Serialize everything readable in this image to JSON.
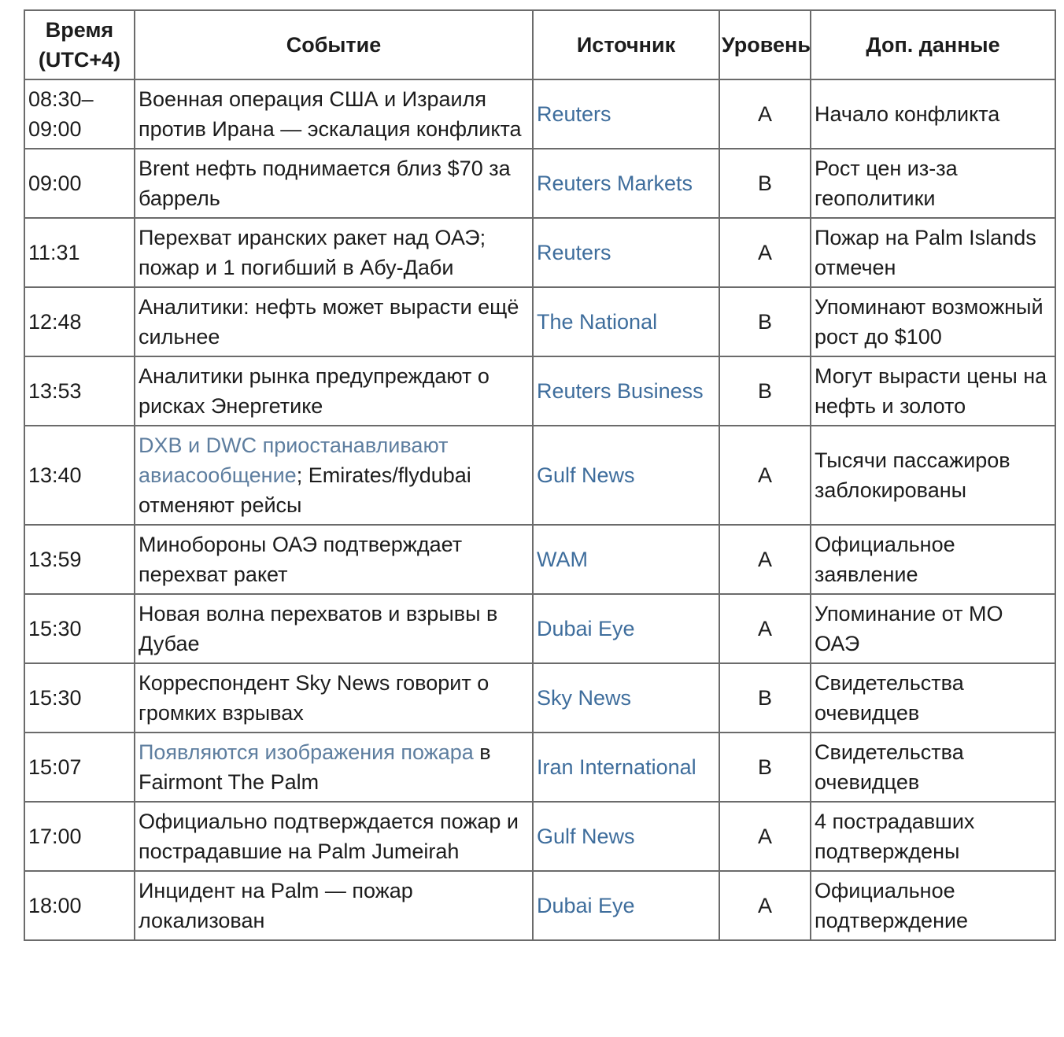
{
  "colors": {
    "text": "#1c1c1c",
    "border": "#6b6b6b",
    "source_link": "#3e6d9c",
    "event_link": "#5e7e9f"
  },
  "table": {
    "columns": [
      {
        "key": "time",
        "label": "Время (UTC+4)"
      },
      {
        "key": "event",
        "label": "Событие"
      },
      {
        "key": "source",
        "label": "Источник"
      },
      {
        "key": "level",
        "label": "Уровень"
      },
      {
        "key": "extra",
        "label": "Доп. данные"
      }
    ],
    "rows": [
      {
        "time": "08:30–09:00",
        "event": [
          {
            "text": "Военная операция США и Израиля против Ирана — эскалация конфликта",
            "link": false
          }
        ],
        "source": "Reuters",
        "level": "A",
        "extra": "Начало конфликта"
      },
      {
        "time": "09:00",
        "event": [
          {
            "text": "Brent нефть поднимается близ $70 за баррель",
            "link": false
          }
        ],
        "source": "Reuters Markets",
        "level": "B",
        "extra": "Рост цен из-за геополитики"
      },
      {
        "time": "11:31",
        "event": [
          {
            "text": "Перехват иранских ракет над ОАЭ; пожар и 1 погибший в Абу-Даби",
            "link": false
          }
        ],
        "source": "Reuters",
        "level": "A",
        "extra": "Пожар на Palm Islands отмечен"
      },
      {
        "time": "12:48",
        "event": [
          {
            "text": "Аналитики: нефть может вырасти ещё сильнее",
            "link": false
          }
        ],
        "source": "The National",
        "level": "B",
        "extra": "Упоминают возможный рост до $100"
      },
      {
        "time": "13:53",
        "event": [
          {
            "text": "Аналитики рынка предупреждают о рисках Энергетике",
            "link": false
          }
        ],
        "source": "Reuters Business",
        "level": "B",
        "extra": "Могут вырасти цены на нефть и золото"
      },
      {
        "time": "13:40",
        "event": [
          {
            "text": "DXB и DWC приостанавливают авиасообщение",
            "link": true
          },
          {
            "text": "; Emirates/flydubai отменяют рейсы",
            "link": false
          }
        ],
        "source": "Gulf News",
        "level": "A",
        "extra": "Тысячи пассажиров заблокированы"
      },
      {
        "time": "13:59",
        "event": [
          {
            "text": "Минобороны ОАЭ подтверждает перехват ракет",
            "link": false
          }
        ],
        "source": "WAM",
        "level": "A",
        "extra": "Официальное заявление"
      },
      {
        "time": "15:30",
        "event": [
          {
            "text": "Новая волна перехватов и взрывы в Дубае",
            "link": false
          }
        ],
        "source": "Dubai Eye",
        "level": "A",
        "extra": "Упоминание от МО ОАЭ"
      },
      {
        "time": "15:30",
        "event": [
          {
            "text": "Корреспондент Sky News говорит о громких взрывах",
            "link": false
          }
        ],
        "source": "Sky News",
        "level": "B",
        "extra": "Свидетельства очевидцев"
      },
      {
        "time": "15:07",
        "event": [
          {
            "text": "Появляются изображения пожара",
            "link": true
          },
          {
            "text": " в Fairmont The Palm",
            "link": false
          }
        ],
        "source": "Iran International",
        "level": "B",
        "extra": "Свидетельства очевидцев"
      },
      {
        "time": "17:00",
        "event": [
          {
            "text": "Официально подтверждается пожар и пострадавшие на Palm Jumeirah",
            "link": false
          }
        ],
        "source": "Gulf News",
        "level": "A",
        "extra": "4 пострадавших подтверждены"
      },
      {
        "time": "18:00",
        "event": [
          {
            "text": "Инцидент на Palm — пожар локализован",
            "link": false
          }
        ],
        "source": "Dubai Eye",
        "level": "A",
        "extra": "Официальное подтверждение"
      }
    ]
  }
}
